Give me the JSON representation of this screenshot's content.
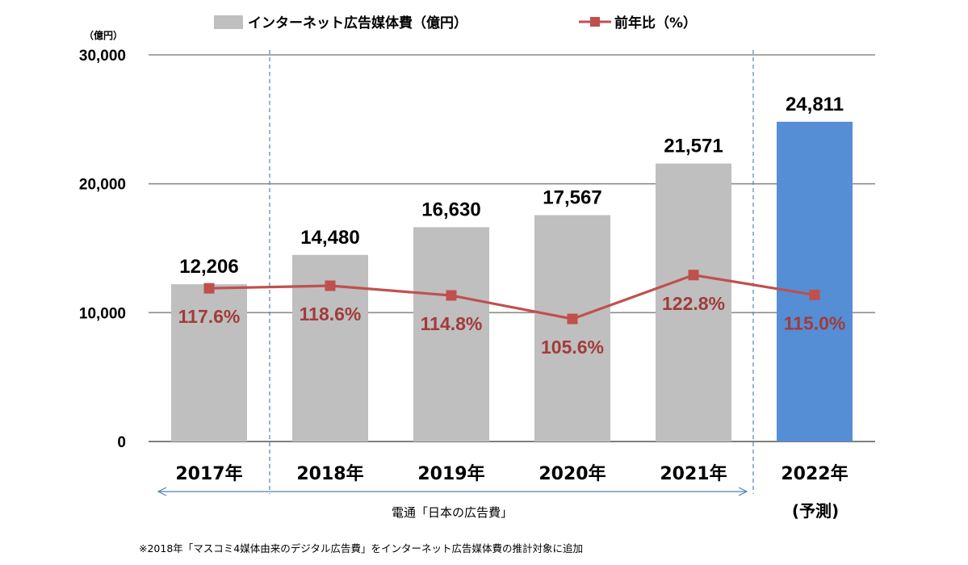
{
  "chart_data": {
    "type": "bar",
    "unit_label": "（億円）",
    "categories": [
      "2017年",
      "2018年",
      "2019年",
      "2020年",
      "2021年",
      "2022年"
    ],
    "forecast_note": "(予測)",
    "ylim": [
      0,
      30000
    ],
    "yticks": [
      {
        "value": 0,
        "label": "0"
      },
      {
        "value": 10000,
        "label": "10,000"
      },
      {
        "value": 20000,
        "label": "20,000"
      },
      {
        "value": 30000,
        "label": "30,000"
      }
    ],
    "grid": true,
    "legend_position": "top",
    "series": [
      {
        "name": "インターネット広告媒体費（億円）",
        "type": "bar",
        "values": [
          12206,
          14480,
          16630,
          17567,
          21571,
          24811
        ],
        "labels": [
          "12,206",
          "14,480",
          "16,630",
          "17,567",
          "21,571",
          "24,811"
        ],
        "color": "#bfbfbf",
        "highlight_color": "#558ed5"
      },
      {
        "name": "前年比（%）",
        "type": "line",
        "values": [
          117.6,
          118.6,
          114.8,
          105.6,
          122.8,
          115.0
        ],
        "labels": [
          "117.6%",
          "118.6%",
          "114.8%",
          "105.6%",
          "122.8%",
          "115.0%"
        ],
        "color": "#c0504d",
        "label_color": "#a23b3b"
      }
    ],
    "source": "電通「日本の広告費」",
    "footnote": "※2018年「マスコミ4媒体由来のデジタル広告費」をインターネット広告媒体費の推計対象に追加"
  }
}
